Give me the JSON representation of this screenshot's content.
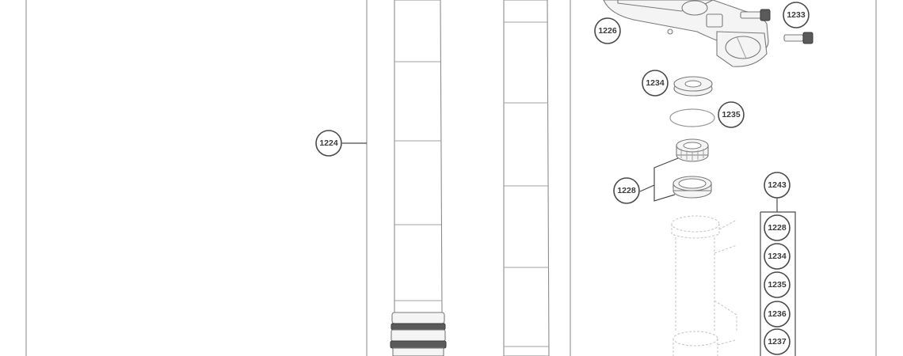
{
  "callouts": {
    "c1224": "1224",
    "c1226": "1226",
    "c1233": "1233",
    "c1234": "1234",
    "c1235": "1235",
    "c1228": "1228",
    "c1243": "1243",
    "kit": [
      "1228",
      "1234",
      "1235",
      "1236",
      "1237"
    ]
  },
  "colors": {
    "outline": "#8c8c8c",
    "callout_ring": "#4a4a4a",
    "text": "#3a3a3a"
  }
}
